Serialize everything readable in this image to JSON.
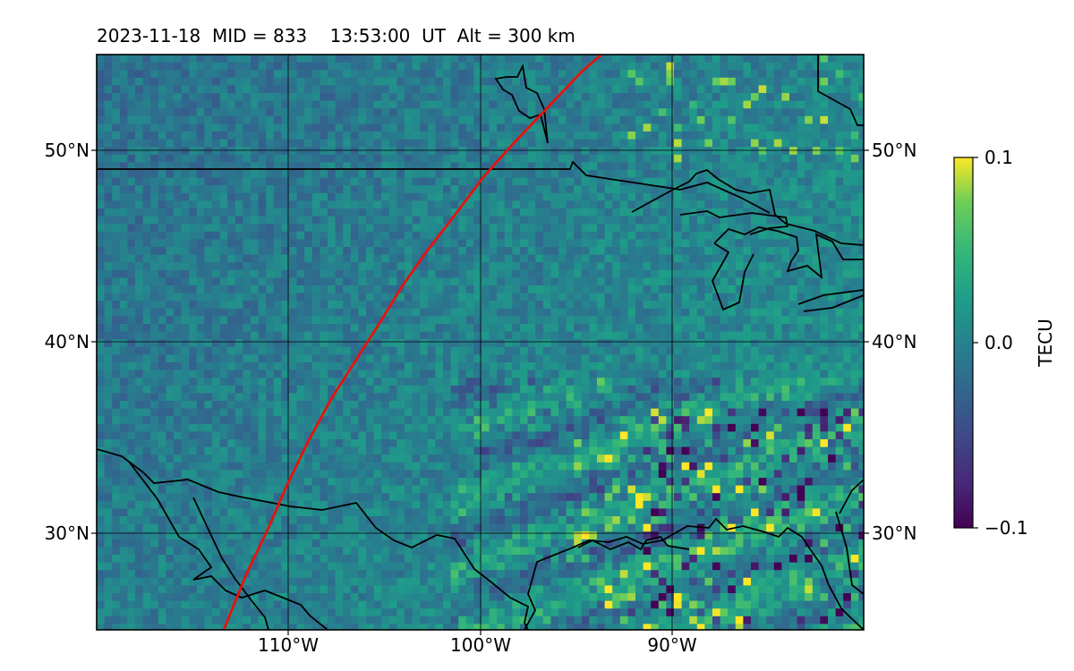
{
  "title": "2023-11-18  MID = 833    13:53:00  UT  Alt = 300 km",
  "map": {
    "lat_labels": [
      "50°N",
      "40°N",
      "30°N"
    ],
    "lon_labels": [
      "110°W",
      "100°W",
      "90°W"
    ],
    "lon_range": [
      -120,
      -80
    ],
    "lat_range": [
      25,
      55
    ],
    "track_color": "#e8120c"
  },
  "colorbar": {
    "label": "TECU",
    "ticks": [
      "0.1",
      "0.0",
      "−0.1"
    ],
    "range": [
      -0.1,
      0.1
    ],
    "colormap": "viridis"
  }
}
